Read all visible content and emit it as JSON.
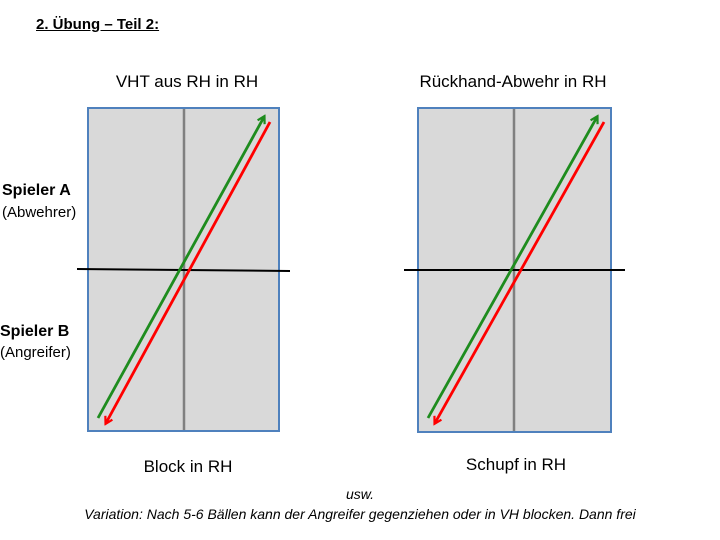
{
  "heading": "2. Übung – Teil 2:",
  "tables": [
    {
      "title": "VHT aus RH in RH",
      "subtitle": "Block in RH"
    },
    {
      "title": "Rückhand-Abwehr in RH",
      "subtitle": "Schupf in RH"
    }
  ],
  "players": {
    "a": {
      "name": "Spieler A",
      "role": "(Abwehrer)"
    },
    "b": {
      "name": "Spieler B",
      "role": "(Angreifer)"
    }
  },
  "footer": {
    "line1": "usw.",
    "line2": "Variation: Nach 5-6 Bällen kann der Angreifer gegenziehen oder in VH blocken. Dann frei"
  },
  "colors": {
    "table_fill": "#d9d9d9",
    "table_border": "#4f81bd",
    "center_line": "#808080",
    "net": "#000000",
    "arrow_green": "#1e8c1e",
    "arrow_red": "#ff0000"
  }
}
